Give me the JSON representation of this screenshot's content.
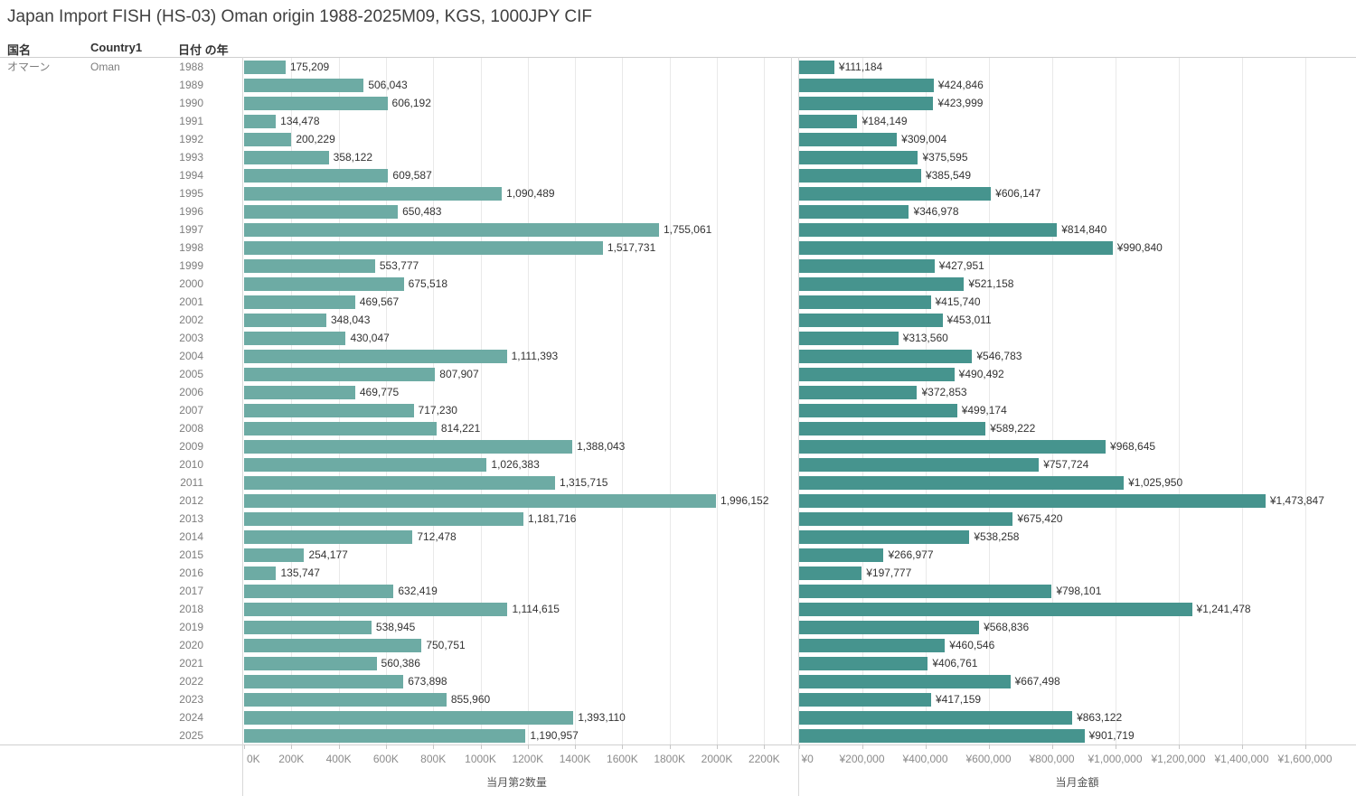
{
  "title": "Japan Import FISH (HS-03) Oman origin 1988-2025M09, KGS, 1000JPY CIF",
  "header": {
    "country_jp_label": "国名",
    "country_en_label": "Country1",
    "year_label": "日付 の年"
  },
  "row_labels": {
    "country_jp": "オマーン",
    "country_en": "Oman"
  },
  "chart_data": {
    "type": "bar",
    "orientation": "horizontal",
    "grid": true,
    "legend": "none",
    "categories": [
      "1988",
      "1989",
      "1990",
      "1991",
      "1992",
      "1993",
      "1994",
      "1995",
      "1996",
      "1997",
      "1998",
      "1999",
      "2000",
      "2001",
      "2002",
      "2003",
      "2004",
      "2005",
      "2006",
      "2007",
      "2008",
      "2009",
      "2010",
      "2011",
      "2012",
      "2013",
      "2014",
      "2015",
      "2016",
      "2017",
      "2018",
      "2019",
      "2020",
      "2021",
      "2022",
      "2023",
      "2024",
      "2025"
    ],
    "series": [
      {
        "name": "当月第2数量",
        "color": "#6daba4",
        "axis_ticks": [
          "0K",
          "200K",
          "400K",
          "600K",
          "800K",
          "1000K",
          "1200K",
          "1400K",
          "1600K",
          "1800K",
          "2000K",
          "2200K"
        ],
        "axis_tick_interval": 200000,
        "axis_max": 2320000,
        "values": [
          175209,
          506043,
          606192,
          134478,
          200229,
          358122,
          609587,
          1090489,
          650483,
          1755061,
          1517731,
          553777,
          675518,
          469567,
          348043,
          430047,
          1111393,
          807907,
          469775,
          717230,
          814221,
          1388043,
          1026383,
          1315715,
          1996152,
          1181716,
          712478,
          254177,
          135747,
          632419,
          1114615,
          538945,
          750751,
          560386,
          673898,
          855960,
          1393110,
          1190957
        ],
        "value_labels": [
          "175,209",
          "506,043",
          "606,192",
          "134,478",
          "200,229",
          "358,122",
          "609,587",
          "1,090,489",
          "650,483",
          "1,755,061",
          "1,517,731",
          "553,777",
          "675,518",
          "469,567",
          "348,043",
          "430,047",
          "1,111,393",
          "807,907",
          "469,775",
          "717,230",
          "814,221",
          "1,388,043",
          "1,026,383",
          "1,315,715",
          "1,996,152",
          "1,181,716",
          "712,478",
          "254,177",
          "135,747",
          "632,419",
          "1,114,615",
          "538,945",
          "750,751",
          "560,386",
          "673,898",
          "855,960",
          "1,393,110",
          "1,190,957"
        ]
      },
      {
        "name": "当月金額",
        "color": "#46948e",
        "axis_ticks": [
          "¥0",
          "¥200,000",
          "¥400,000",
          "¥600,000",
          "¥800,000",
          "¥1,000,000",
          "¥1,200,000",
          "¥1,400,000",
          "¥1,600,000"
        ],
        "axis_tick_interval": 200000,
        "axis_max": 1764000,
        "values": [
          111184,
          424846,
          423999,
          184149,
          309004,
          375595,
          385549,
          606147,
          346978,
          814840,
          990840,
          427951,
          521158,
          415740,
          453011,
          313560,
          546783,
          490492,
          372853,
          499174,
          589222,
          968645,
          757724,
          1025950,
          1473847,
          675420,
          538258,
          266977,
          197777,
          798101,
          1241478,
          568836,
          460546,
          406761,
          667498,
          417159,
          863122,
          901719
        ],
        "value_labels": [
          "¥111,184",
          "¥424,846",
          "¥423,999",
          "¥184,149",
          "¥309,004",
          "¥375,595",
          "¥385,549",
          "¥606,147",
          "¥346,978",
          "¥814,840",
          "¥990,840",
          "¥427,951",
          "¥521,158",
          "¥415,740",
          "¥453,011",
          "¥313,560",
          "¥546,783",
          "¥490,492",
          "¥372,853",
          "¥499,174",
          "¥589,222",
          "¥968,645",
          "¥757,724",
          "¥1,025,950",
          "¥1,473,847",
          "¥675,420",
          "¥538,258",
          "¥266,977",
          "¥197,777",
          "¥798,101",
          "¥1,241,478",
          "¥568,836",
          "¥460,546",
          "¥406,761",
          "¥667,498",
          "¥417,159",
          "¥863,122",
          "¥901,719"
        ]
      }
    ]
  }
}
